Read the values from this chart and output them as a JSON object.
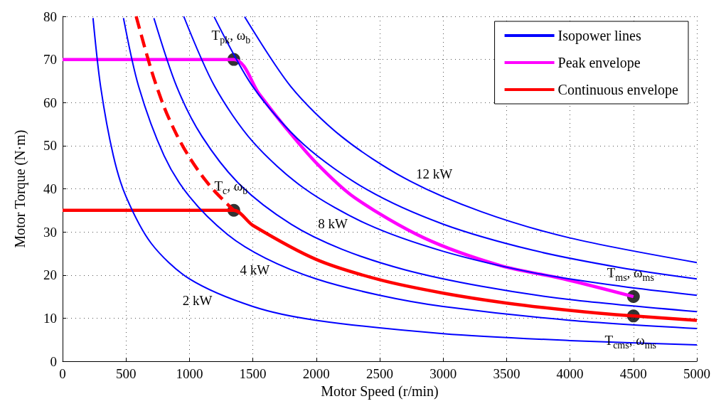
{
  "chart_data": {
    "type": "line",
    "xlabel": "Motor Speed (r/min)",
    "ylabel": "Motor Torque (N·m)",
    "xlim": [
      0,
      5000
    ],
    "xticks": [
      0,
      500,
      1000,
      1500,
      2000,
      2500,
      3000,
      3500,
      4000,
      4500,
      5000
    ],
    "ylim": [
      0,
      80
    ],
    "yticks": [
      0,
      10,
      20,
      30,
      40,
      50,
      60,
      70,
      80
    ],
    "grid": true,
    "legend": "top right",
    "series": [
      {
        "name": "Isopower lines",
        "color": "#0000ff",
        "marker": "none",
        "line_style": "solid",
        "x": [
          240,
          300,
          400,
          500,
          700,
          1000,
          1500,
          2000,
          3000,
          4000,
          5000
        ],
        "values": [
          79.6,
          63.7,
          47.7,
          38.2,
          27.3,
          19.1,
          12.7,
          9.5,
          6.4,
          4.8,
          3.8
        ]
      },
      {
        "color": "#0000ff",
        "marker": "none",
        "line_style": "solid",
        "x": [
          480,
          600,
          800,
          1000,
          1300,
          1600,
          2000,
          2500,
          3000,
          4000,
          5000
        ],
        "values": [
          79.6,
          63.7,
          47.7,
          38.2,
          29.4,
          23.9,
          19.1,
          15.3,
          12.7,
          9.5,
          7.6
        ]
      },
      {
        "color": "#0000ff",
        "marker": "none",
        "line_style": "solid",
        "x": [
          720,
          900,
          1100,
          1400,
          1800,
          2200,
          2700,
          3300,
          4000,
          5000
        ],
        "values": [
          79.6,
          63.7,
          52.1,
          40.9,
          31.8,
          26.0,
          21.2,
          17.4,
          14.3,
          11.5
        ]
      },
      {
        "color": "#0000ff",
        "marker": "none",
        "line_style": "solid",
        "x": [
          955,
          1200,
          1500,
          1900,
          2400,
          3000,
          3700,
          4400,
          5000
        ],
        "values": [
          80.0,
          63.7,
          50.9,
          40.2,
          31.8,
          25.5,
          20.6,
          17.4,
          15.3
        ]
      },
      {
        "color": "#0000ff",
        "marker": "none",
        "line_style": "solid",
        "x": [
          1195,
          1500,
          1900,
          2400,
          3000,
          3700,
          4400,
          5000
        ],
        "values": [
          79.9,
          63.7,
          50.3,
          39.8,
          31.8,
          25.8,
          21.7,
          19.1
        ]
      },
      {
        "color": "#0000ff",
        "marker": "none",
        "line_style": "solid",
        "x": [
          1435,
          1800,
          2200,
          2700,
          3300,
          4000,
          5000
        ],
        "values": [
          79.9,
          63.7,
          52.1,
          42.4,
          34.7,
          28.6,
          22.9
        ]
      },
      {
        "name": "Peak envelope",
        "color": "#ff00ff",
        "marker": "none",
        "line_style": "solid",
        "x": [
          0,
          1350,
          1550,
          1750,
          2000,
          2300,
          2850,
          3450,
          3950,
          4500
        ],
        "values": [
          70,
          70,
          62,
          54.5,
          46,
          38,
          28.6,
          22.2,
          19.1,
          15
        ]
      },
      {
        "name": "Continuous envelope",
        "color": "#ff0000",
        "marker": "none",
        "line_style": "solid",
        "x": [
          0,
          1350,
          1500,
          2000,
          2500,
          3000,
          3500,
          4000,
          4500,
          5000
        ],
        "values": [
          35,
          35,
          31.5,
          23.6,
          18.9,
          15.8,
          13.5,
          11.8,
          10.5,
          9.5
        ]
      },
      {
        "color": "#ff0000",
        "marker": "none",
        "line_style": "dashed",
        "x": [
          580,
          700,
          800,
          900,
          1000,
          1100,
          1200,
          1350
        ],
        "values": [
          80,
          67.5,
          59,
          52.5,
          47.3,
          43,
          39.4,
          35
        ]
      },
      {
        "type": "scatter",
        "color": "#000000",
        "marker": "circle",
        "x": [
          1350,
          1350,
          4500,
          4500
        ],
        "values": [
          70,
          35,
          15,
          10.5
        ]
      }
    ],
    "annotations": [
      {
        "text": "2 kW",
        "x": 1063,
        "y": 18.0
      },
      {
        "text": "4 kW",
        "x": 1515,
        "y": 25.2
      },
      {
        "text": "8 kW",
        "x": 2130,
        "y": 35.9
      },
      {
        "text": "12 kW",
        "x": 2930,
        "y": 39.1
      },
      {
        "text": "T$_{pk}$, ω$_{b}$",
        "x": 1350,
        "y": 70
      },
      {
        "text": "T$_{c}$, ω$_{b}$",
        "x": 1350,
        "y": 35
      },
      {
        "text": "T$_{ms}$, ω$_{ms}$",
        "x": 4500,
        "y": 15
      },
      {
        "text": "T$_{cms}$, ω$_{ms}$",
        "x": 4500,
        "y": 10.5
      }
    ]
  }
}
